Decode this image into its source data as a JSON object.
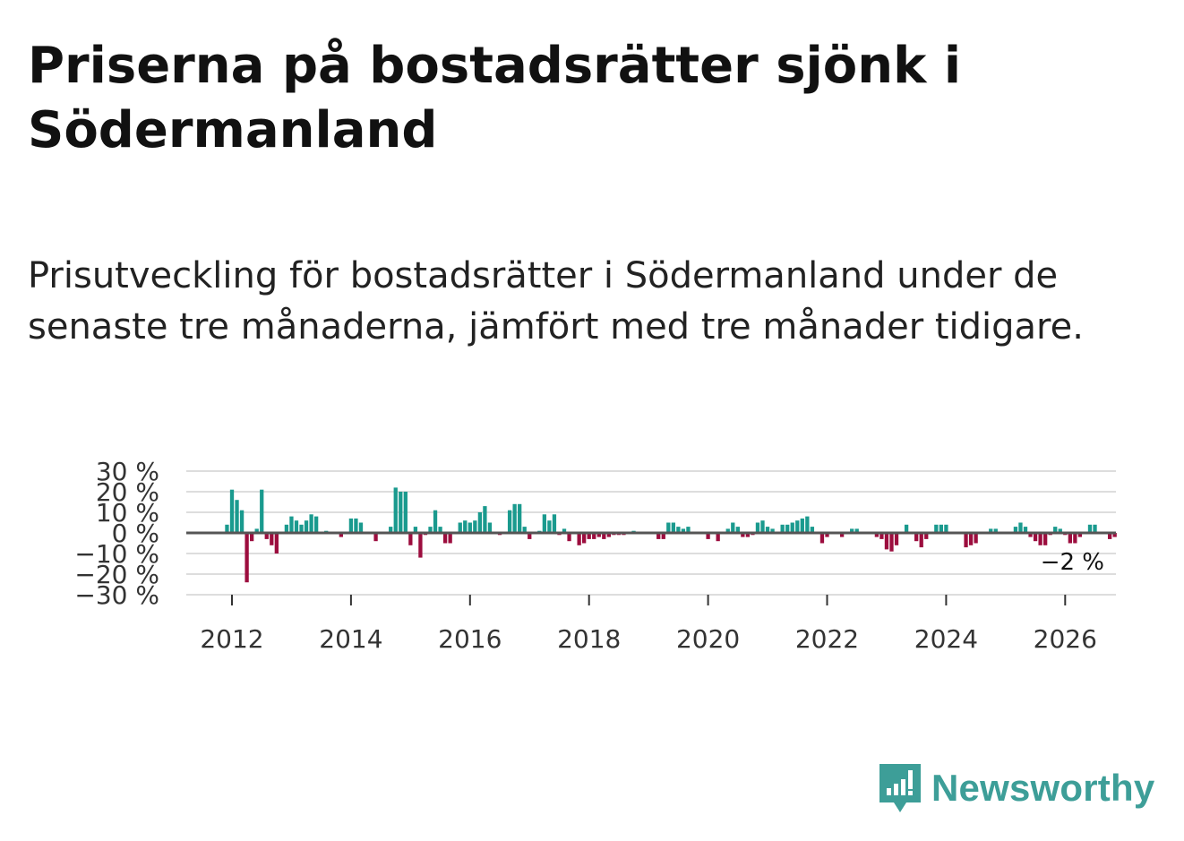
{
  "header": {
    "title": "Priserna på bostadsrätter sjönk i Södermanland",
    "subtitle": "Prisutveckling för bostadsrätter i Södermanland under de senaste tre månaderna, jämfört med tre månader tidigare."
  },
  "brand": {
    "name": "Newsworthy"
  },
  "colors": {
    "positive": "#1a9a8e",
    "negative": "#9c0d3e",
    "grid": "#dddddd",
    "zero": "#555555"
  },
  "chart_data": {
    "type": "bar",
    "x_start": "2011-12",
    "x_unit": "month",
    "values": [
      4,
      21,
      16,
      11,
      -24,
      -4,
      2,
      21,
      -3,
      -6,
      -10,
      0,
      4,
      8,
      6,
      4,
      6,
      9,
      8,
      0,
      1,
      0,
      0,
      -2,
      0,
      7,
      7,
      5,
      0,
      0,
      -4,
      0,
      0,
      3,
      22,
      20,
      20,
      -6,
      3,
      -12,
      -1,
      3,
      11,
      3,
      -5,
      -5,
      0,
      5,
      6,
      5,
      6,
      10,
      13,
      5,
      0,
      -1,
      0,
      11,
      14,
      14,
      3,
      -3,
      0,
      1,
      9,
      6,
      9,
      -1,
      2,
      -4,
      0,
      -6,
      -5,
      -3,
      -3,
      -2,
      -3,
      -2,
      -1,
      -1,
      -1,
      0,
      1,
      0,
      0,
      0,
      0,
      -3,
      -3,
      5,
      5,
      3,
      2,
      3,
      0,
      0,
      0,
      -3,
      0,
      -4,
      0,
      2,
      5,
      3,
      -2,
      -2,
      -1,
      5,
      6,
      3,
      2,
      0,
      4,
      4,
      5,
      6,
      7,
      8,
      3,
      0,
      -5,
      -2,
      0,
      0,
      -2,
      0,
      2,
      2,
      0,
      0,
      0,
      -2,
      -3,
      -8,
      -9,
      -6,
      0,
      4,
      0,
      -4,
      -7,
      -3,
      0,
      4,
      4,
      4,
      0,
      0,
      0,
      -7,
      -6,
      -5,
      0,
      0,
      2,
      2,
      0,
      0,
      0,
      3,
      5,
      3,
      -2,
      -4,
      -6,
      -6,
      -1,
      3,
      2,
      -1,
      -5,
      -5,
      -2,
      0,
      4,
      4,
      0,
      0,
      -3,
      -2
    ],
    "end_label": "−2 %",
    "ylim": [
      -30,
      30
    ],
    "y_ticks": [
      30,
      20,
      10,
      0,
      -10,
      -20,
      -30
    ],
    "y_tick_labels": [
      "30 %",
      "20 %",
      "10 %",
      "0 %",
      "−10 %",
      "−20 %",
      "−30 %"
    ],
    "x_ticks": [
      2012,
      2014,
      2016,
      2018,
      2020,
      2022,
      2024,
      2026
    ],
    "x_tick_labels": [
      "2012",
      "2014",
      "2016",
      "2018",
      "2020",
      "2022",
      "2024",
      "2026"
    ],
    "title": "",
    "xlabel": "",
    "ylabel": "",
    "grid": true
  }
}
